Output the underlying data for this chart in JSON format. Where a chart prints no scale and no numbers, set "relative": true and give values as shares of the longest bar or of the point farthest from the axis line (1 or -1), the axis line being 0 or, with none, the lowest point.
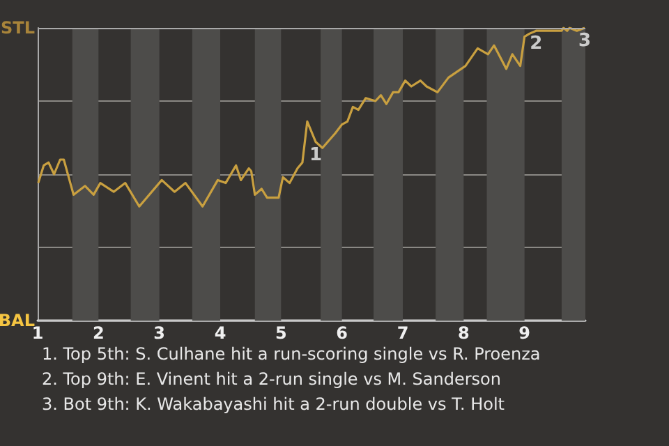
{
  "chart_data": {
    "type": "line",
    "relative": true,
    "x": [
      1.01,
      1.1,
      1.18,
      1.27,
      1.37,
      1.43,
      1.59,
      1.78,
      1.92,
      2.03,
      2.25,
      2.44,
      2.67,
      3.04,
      3.25,
      3.43,
      3.71,
      3.96,
      4.09,
      4.26,
      4.34,
      4.47,
      4.51,
      4.57,
      4.68,
      4.77,
      4.96,
      5.03,
      5.14,
      5.27,
      5.35,
      5.43,
      5.57,
      5.68,
      5.89,
      6.0,
      6.09,
      6.18,
      6.27,
      6.39,
      6.55,
      6.64,
      6.73,
      6.84,
      6.93,
      7.04,
      7.14,
      7.29,
      7.39,
      7.57,
      7.75,
      8.03,
      8.23,
      8.4,
      8.5,
      8.7,
      8.8,
      8.93,
      9.0,
      9.08,
      9.19,
      9.61,
      9.64,
      9.7,
      9.74,
      9.86,
      9.99
    ],
    "values": [
      0.47,
      0.53,
      0.54,
      0.5,
      0.55,
      0.55,
      0.43,
      0.46,
      0.43,
      0.47,
      0.44,
      0.47,
      0.39,
      0.48,
      0.44,
      0.47,
      0.39,
      0.48,
      0.47,
      0.53,
      0.48,
      0.52,
      0.51,
      0.43,
      0.45,
      0.42,
      0.42,
      0.49,
      0.47,
      0.52,
      0.54,
      0.68,
      0.61,
      0.59,
      0.64,
      0.67,
      0.68,
      0.73,
      0.72,
      0.76,
      0.75,
      0.77,
      0.74,
      0.78,
      0.78,
      0.82,
      0.8,
      0.82,
      0.8,
      0.78,
      0.83,
      0.87,
      0.93,
      0.91,
      0.94,
      0.86,
      0.91,
      0.87,
      0.97,
      0.98,
      0.99,
      0.99,
      1,
      0.99,
      1,
      0.99,
      1
    ],
    "color": "#c9a040",
    "xlim": [
      1,
      10
    ],
    "xticks": [
      1,
      2,
      3,
      4,
      5,
      6,
      7,
      8,
      9
    ],
    "grid": "y",
    "marker": "none",
    "bands": [
      {
        "axis": "x",
        "from": 1.57,
        "to": 2,
        "color": "#4d4c4a"
      },
      {
        "axis": "x",
        "from": 2.53,
        "to": 3,
        "color": "#4d4c4a"
      },
      {
        "axis": "x",
        "from": 3.54,
        "to": 4,
        "color": "#4d4c4a"
      },
      {
        "axis": "x",
        "from": 4.57,
        "to": 5,
        "color": "#4d4c4a"
      },
      {
        "axis": "x",
        "from": 5.65,
        "to": 6,
        "color": "#4d4c4a"
      },
      {
        "axis": "x",
        "from": 6.52,
        "to": 7,
        "color": "#4d4c4a"
      },
      {
        "axis": "x",
        "from": 7.54,
        "to": 8,
        "color": "#4d4c4a"
      },
      {
        "axis": "x",
        "from": 8.38,
        "to": 9,
        "color": "#4d4c4a"
      },
      {
        "axis": "x",
        "from": 9.61,
        "to": 10,
        "color": "#4d4c4a"
      }
    ],
    "ref_lines": [
      {
        "axis": "y",
        "value": 1,
        "label": "STL"
      },
      {
        "axis": "y",
        "value": 0,
        "label": "BAL"
      }
    ],
    "annotations": [
      {
        "text": "1",
        "x": 5.57,
        "y": 0.61
      },
      {
        "text": "2",
        "x": 9.19,
        "y": 0.99
      },
      {
        "text": "3",
        "x": 9.99,
        "y": 1
      },
      "1. Top 5th: S. Culhane hit a run-scoring single vs R. Proenza",
      "2. Top 9th: E. Vinent hit a 2-run single vs M. Sanderson",
      "3. Bot 9th: K. Wakabayashi hit a 2-run double vs T. Holt"
    ]
  }
}
